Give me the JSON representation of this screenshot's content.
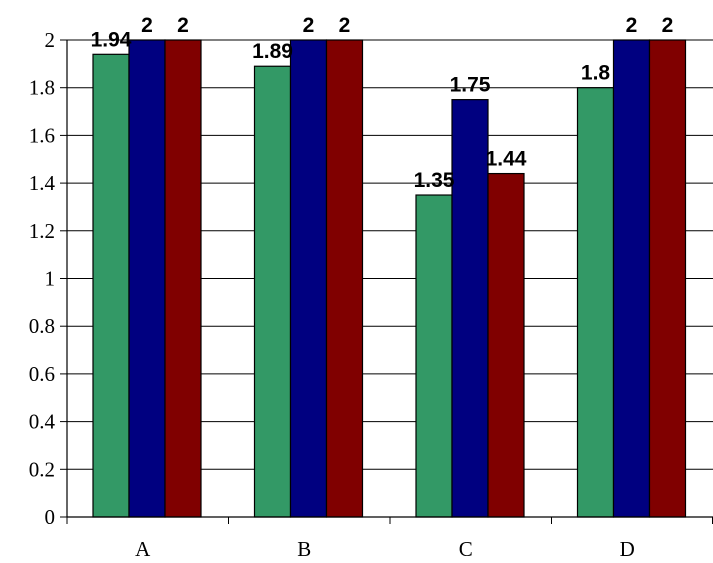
{
  "chart_data": {
    "type": "bar",
    "title": "",
    "xlabel": "",
    "ylabel": "",
    "categories": [
      "A",
      "B",
      "C",
      "D"
    ],
    "ylim": [
      0,
      2
    ],
    "yticks": [
      "0",
      "0.2",
      "0.4",
      "0.6",
      "0.8",
      "1",
      "1.2",
      "1.4",
      "1.6",
      "1.8",
      "2"
    ],
    "grid": "horizontal",
    "legend": "none",
    "series": [
      {
        "color": "#339966",
        "values": [
          1.94,
          1.89,
          1.35,
          1.8
        ],
        "labels": [
          "1.94",
          "1.89",
          "1.35",
          "1.8"
        ]
      },
      {
        "color": "#000080",
        "values": [
          2,
          2,
          1.75,
          2
        ],
        "labels": [
          "2",
          "2",
          "1.75",
          "2"
        ]
      },
      {
        "color": "#800000",
        "values": [
          2,
          2,
          1.44,
          2
        ],
        "labels": [
          "2",
          "2",
          "1.44",
          "2"
        ]
      }
    ]
  }
}
